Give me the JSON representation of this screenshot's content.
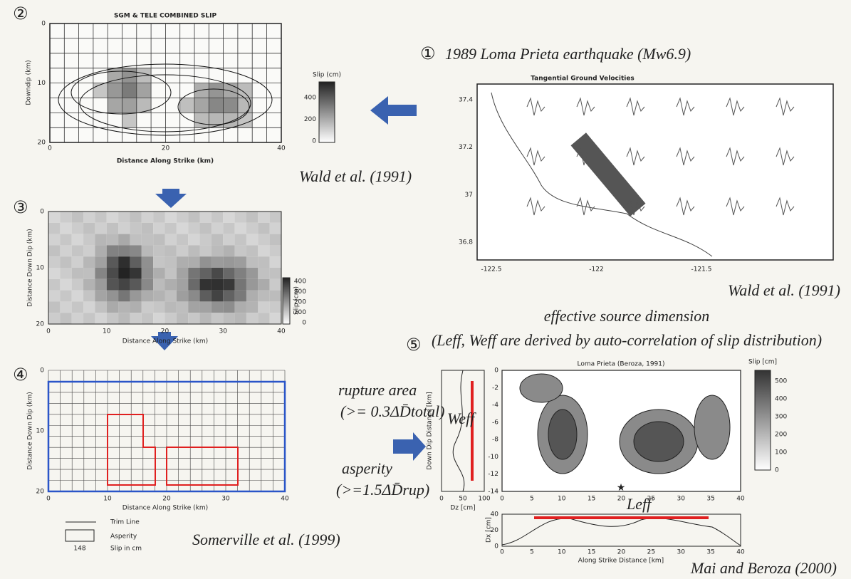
{
  "panel1": {
    "number": "①",
    "title": "1989 Loma Prieta earthquake (Mw6.9)",
    "map_title": "Tangential Ground Velocities",
    "y_ticks": [
      "37.4",
      "37.2",
      "37",
      "36.8"
    ],
    "x_ticks": [
      "-122.5",
      "-122",
      "-121.5"
    ],
    "credit": "Wald et al. (1991)"
  },
  "panel2": {
    "number": "②",
    "title": "SGM & TELE COMBINED SLIP",
    "y_label": "Downdip (km)",
    "x_label": "Distance Along Strike (km)",
    "x_ticks": [
      "0",
      "20",
      "40"
    ],
    "y_ticks": [
      "0",
      "10",
      "20"
    ],
    "colorbar_label": "Slip (cm)",
    "colorbar_ticks": [
      "400",
      "200",
      "0"
    ],
    "credit": "Wald et al. (1991)"
  },
  "panel3": {
    "number": "③",
    "y_label": "Distance Down Dip (km)",
    "x_label": "Distance Along Strike (km)",
    "x_ticks": [
      "0",
      "10",
      "20",
      "30",
      "40"
    ],
    "y_ticks": [
      "0",
      "10",
      "20"
    ],
    "colorbar_label": "Slip (cm)",
    "colorbar_ticks": [
      "400",
      "300",
      "200",
      "100",
      "0"
    ]
  },
  "panel4": {
    "number": "④",
    "y_label": "Distance Down Dip (km)",
    "x_label": "Distance Along Strike (km)",
    "x_ticks": [
      "0",
      "10",
      "20",
      "30",
      "40"
    ],
    "y_ticks": [
      "0",
      "10",
      "20"
    ],
    "rupture_label": "rupture area",
    "rupture_formula": "(>= 0.3ΔD̄total)",
    "asperity_label": "asperity",
    "asperity_formula": "(>=1.5ΔD̄rup)",
    "legend": {
      "trim_line": "Trim Line",
      "asperity": "Asperity",
      "slip_sample": "148",
      "slip": "Slip in cm"
    },
    "credit": "Somerville et al. (1999)"
  },
  "panel5": {
    "heading": "effective source dimension",
    "note": "(Leff, Weff are derived by auto-correlation of slip distribution)",
    "number": "⑤",
    "title": "Loma Prieta (Beroza, 1991)",
    "y_label": "Down Dip Distance [km]",
    "y_ticks": [
      "0",
      "-2",
      "-4",
      "-6",
      "-8",
      "-10",
      "-12",
      "-14"
    ],
    "x_ticks": [
      "0",
      "5",
      "10",
      "15",
      "20",
      "25",
      "30",
      "35",
      "40"
    ],
    "colorbar_label": "Slip [cm]",
    "colorbar_ticks": [
      "500",
      "400",
      "300",
      "200",
      "100",
      "0"
    ],
    "dz_label": "Dz [cm]",
    "dz_ticks": [
      "0",
      "50",
      "100"
    ],
    "weff": "Weff",
    "dx_label": "Dx [cm]",
    "dx_ticks": [
      "40",
      "20",
      "0"
    ],
    "x_label": "Along Strike Distance [km]",
    "leff": "Leff",
    "credit": "Mai and Beroza (2000)"
  }
}
